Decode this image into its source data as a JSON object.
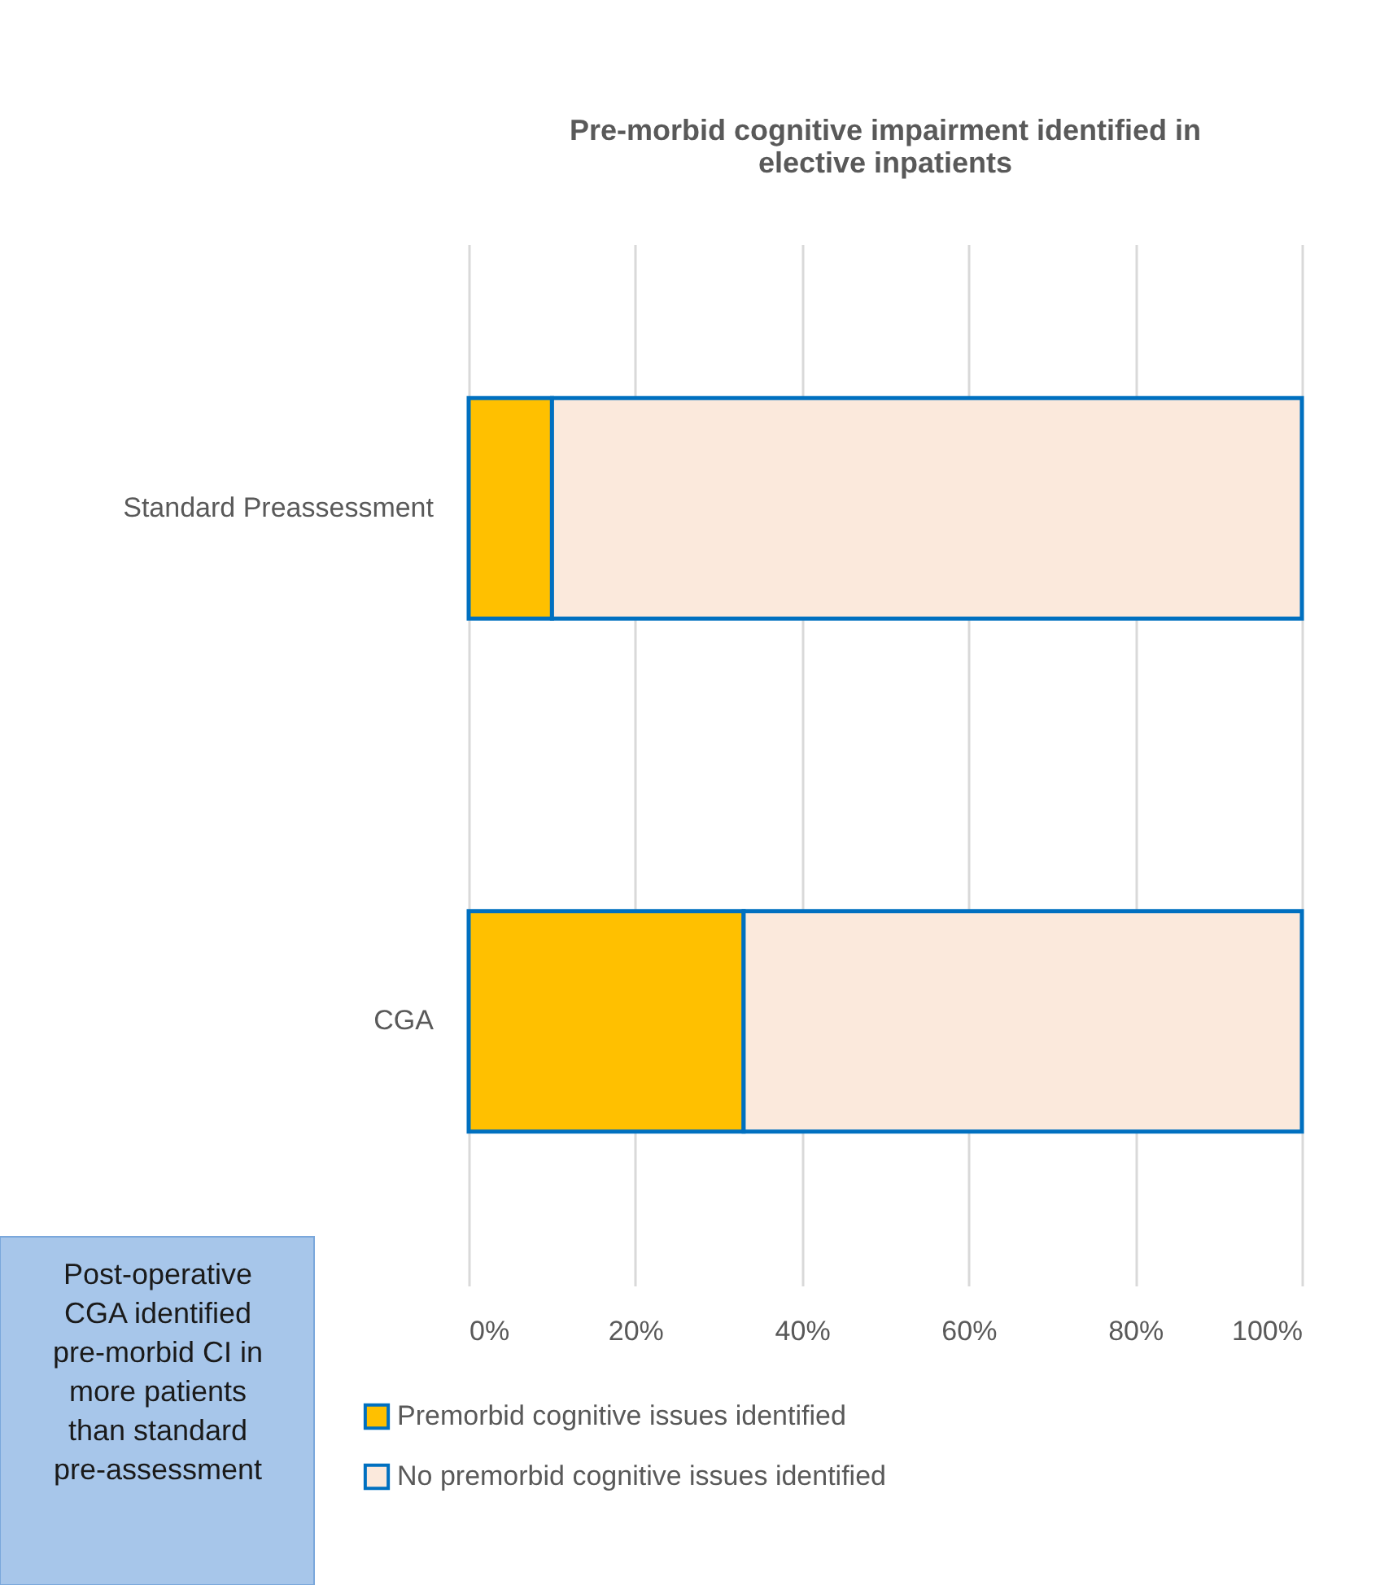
{
  "chart_data": {
    "type": "bar",
    "orientation": "horizontal",
    "stacked": true,
    "title": "Pre-morbid cognitive impairment identified in elective inpatients",
    "categories": [
      "Standard Preassessment",
      "CGA"
    ],
    "series": [
      {
        "name": "Premorbid cognitive issues identified",
        "color": "#ffc000",
        "values": [
          10,
          33
        ]
      },
      {
        "name": "No premorbid cognitive issues identified",
        "color": "#fbe9dc",
        "values": [
          90,
          67
        ]
      }
    ],
    "xlim": [
      0,
      100
    ],
    "xticks": [
      {
        "value": 0,
        "label": "0%"
      },
      {
        "value": 20,
        "label": "20%"
      },
      {
        "value": 40,
        "label": "40%"
      },
      {
        "value": 60,
        "label": "60%"
      },
      {
        "value": 80,
        "label": "80%"
      },
      {
        "value": 100,
        "label": "100%"
      }
    ],
    "grid": "x",
    "legend": "bottom",
    "annotations": [
      "Post-operative CGA identified pre-morbid CI in more patients than standard pre-assessment"
    ]
  }
}
